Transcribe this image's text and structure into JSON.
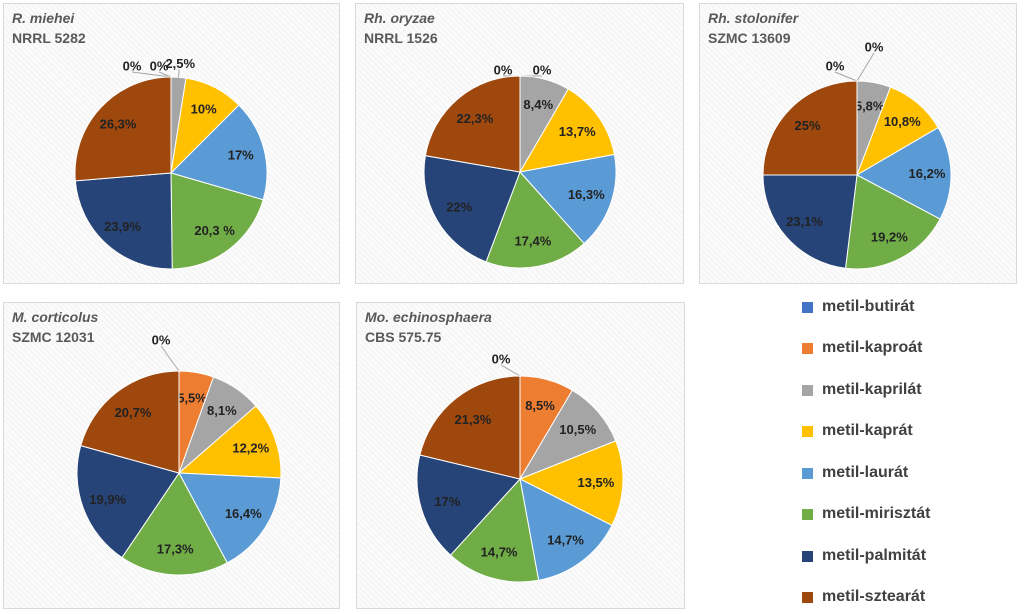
{
  "chart_data": [
    {
      "type": "pie",
      "title": "R. miehei",
      "subtitle": "NRRL 5282",
      "slices": [
        {
          "category": "metil-butirát",
          "value": 0,
          "label": "0%"
        },
        {
          "category": "metil-kaproát",
          "value": 0,
          "label": "0%"
        },
        {
          "category": "metil-kaprilát",
          "value": 2.5,
          "label": "2,5%"
        },
        {
          "category": "metil-kaprát",
          "value": 10,
          "label": "10%"
        },
        {
          "category": "metil-laurát",
          "value": 17,
          "label": "17%"
        },
        {
          "category": "metil-mirisztát",
          "value": 20.3,
          "label": "20,3 %"
        },
        {
          "category": "metil-palmitát",
          "value": 23.9,
          "label": "23,9%"
        },
        {
          "category": "metil-sztearát",
          "value": 26.3,
          "label": "26,3%"
        }
      ]
    },
    {
      "type": "pie",
      "title": "Rh. oryzae",
      "subtitle": "NRRL 1526",
      "slices": [
        {
          "category": "metil-butirát",
          "value": 0,
          "label": "0%"
        },
        {
          "category": "metil-kaproát",
          "value": 0,
          "label": "0%"
        },
        {
          "category": "metil-kaprilát",
          "value": 8.4,
          "label": "8,4%"
        },
        {
          "category": "metil-kaprát",
          "value": 13.7,
          "label": "13,7%"
        },
        {
          "category": "metil-laurát",
          "value": 16.3,
          "label": "16,3%"
        },
        {
          "category": "metil-mirisztát",
          "value": 17.4,
          "label": "17,4%"
        },
        {
          "category": "metil-palmitát",
          "value": 22,
          "label": "22%"
        },
        {
          "category": "metil-sztearát",
          "value": 22.3,
          "label": "22,3%"
        }
      ]
    },
    {
      "type": "pie",
      "title": "Rh. stolonifer",
      "subtitle": "SZMC 13609",
      "slices": [
        {
          "category": "metil-butirát",
          "value": 0,
          "label": "0%"
        },
        {
          "category": "metil-kaproát",
          "value": 0,
          "label": "0%"
        },
        {
          "category": "metil-kaprilát",
          "value": 5.8,
          "label": "5,8%"
        },
        {
          "category": "metil-kaprát",
          "value": 10.8,
          "label": "10,8%"
        },
        {
          "category": "metil-laurát",
          "value": 16.2,
          "label": "16,2%"
        },
        {
          "category": "metil-mirisztát",
          "value": 19.2,
          "label": "19,2%"
        },
        {
          "category": "metil-palmitát",
          "value": 23.1,
          "label": "23,1%"
        },
        {
          "category": "metil-sztearát",
          "value": 25,
          "label": "25%"
        }
      ]
    },
    {
      "type": "pie",
      "title": "M. corticolus",
      "subtitle": "SZMC 12031",
      "slices": [
        {
          "category": "metil-butirát",
          "value": 0,
          "label": "0%"
        },
        {
          "category": "metil-kaproát",
          "value": 5.5,
          "label": "5,5%"
        },
        {
          "category": "metil-kaprilát",
          "value": 8.1,
          "label": "8,1%"
        },
        {
          "category": "metil-kaprát",
          "value": 12.2,
          "label": "12,2%"
        },
        {
          "category": "metil-laurát",
          "value": 16.4,
          "label": "16,4%"
        },
        {
          "category": "metil-mirisztát",
          "value": 17.3,
          "label": "17,3%"
        },
        {
          "category": "metil-palmitát",
          "value": 19.9,
          "label": "19,9%"
        },
        {
          "category": "metil-sztearát",
          "value": 20.7,
          "label": "20,7%"
        }
      ]
    },
    {
      "type": "pie",
      "title": "Mo. echinosphaera",
      "subtitle": "CBS 575.75",
      "slices": [
        {
          "category": "metil-butirát",
          "value": 0,
          "label": "0%"
        },
        {
          "category": "metil-kaproát",
          "value": 8.5,
          "label": "8,5%"
        },
        {
          "category": "metil-kaprilát",
          "value": 10.5,
          "label": "10,5%"
        },
        {
          "category": "metil-kaprát",
          "value": 13.5,
          "label": "13,5%"
        },
        {
          "category": "metil-laurát",
          "value": 14.7,
          "label": "14,7%"
        },
        {
          "category": "metil-mirisztát",
          "value": 14.7,
          "label": "14,7%"
        },
        {
          "category": "metil-palmitát",
          "value": 17,
          "label": "17%"
        },
        {
          "category": "metil-sztearát",
          "value": 21.3,
          "label": "21,3%"
        }
      ]
    }
  ],
  "legend": [
    {
      "name": "metil-butirát",
      "color": "#4472c4"
    },
    {
      "name": "metil-kaproát",
      "color": "#ed7d31"
    },
    {
      "name": "metil-kaprilát",
      "color": "#a5a5a5"
    },
    {
      "name": "metil-kaprát",
      "color": "#ffc000"
    },
    {
      "name": "metil-laurát",
      "color": "#5b9bd5"
    },
    {
      "name": "metil-mirisztát",
      "color": "#70ad47"
    },
    {
      "name": "metil-palmitát",
      "color": "#264478"
    },
    {
      "name": "metil-sztearát",
      "color": "#9e480e"
    }
  ]
}
